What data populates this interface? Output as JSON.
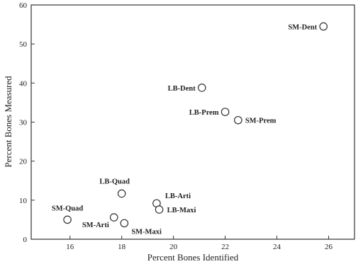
{
  "chart_data": {
    "type": "scatter",
    "title": "",
    "xlabel": "Percent Bones Identified",
    "ylabel": "Percent Bones Measured",
    "xlim": [
      14.5,
      27
    ],
    "ylim": [
      0,
      60
    ],
    "xticks": [
      "16",
      "18",
      "20",
      "22",
      "24",
      "26"
    ],
    "yticks": [
      "0",
      "10",
      "20",
      "30",
      "40",
      "50",
      "60"
    ],
    "grid": false,
    "points": [
      {
        "label": "SM-Dent",
        "x": 25.8,
        "y": 54.5
      },
      {
        "label": "LB-Dent",
        "x": 21.1,
        "y": 38.8
      },
      {
        "label": "LB-Prem",
        "x": 22.0,
        "y": 32.6
      },
      {
        "label": "SM-Prem",
        "x": 22.5,
        "y": 30.5
      },
      {
        "label": "LB-Quad",
        "x": 18.0,
        "y": 11.7
      },
      {
        "label": "LB-Arti",
        "x": 19.35,
        "y": 9.2
      },
      {
        "label": "LB-Maxi",
        "x": 19.45,
        "y": 7.6
      },
      {
        "label": "SM-Quad",
        "x": 15.9,
        "y": 5.0
      },
      {
        "label": "SM-Arti",
        "x": 17.7,
        "y": 5.6
      },
      {
        "label": "SM-Maxi",
        "x": 18.1,
        "y": 4.1
      }
    ]
  }
}
